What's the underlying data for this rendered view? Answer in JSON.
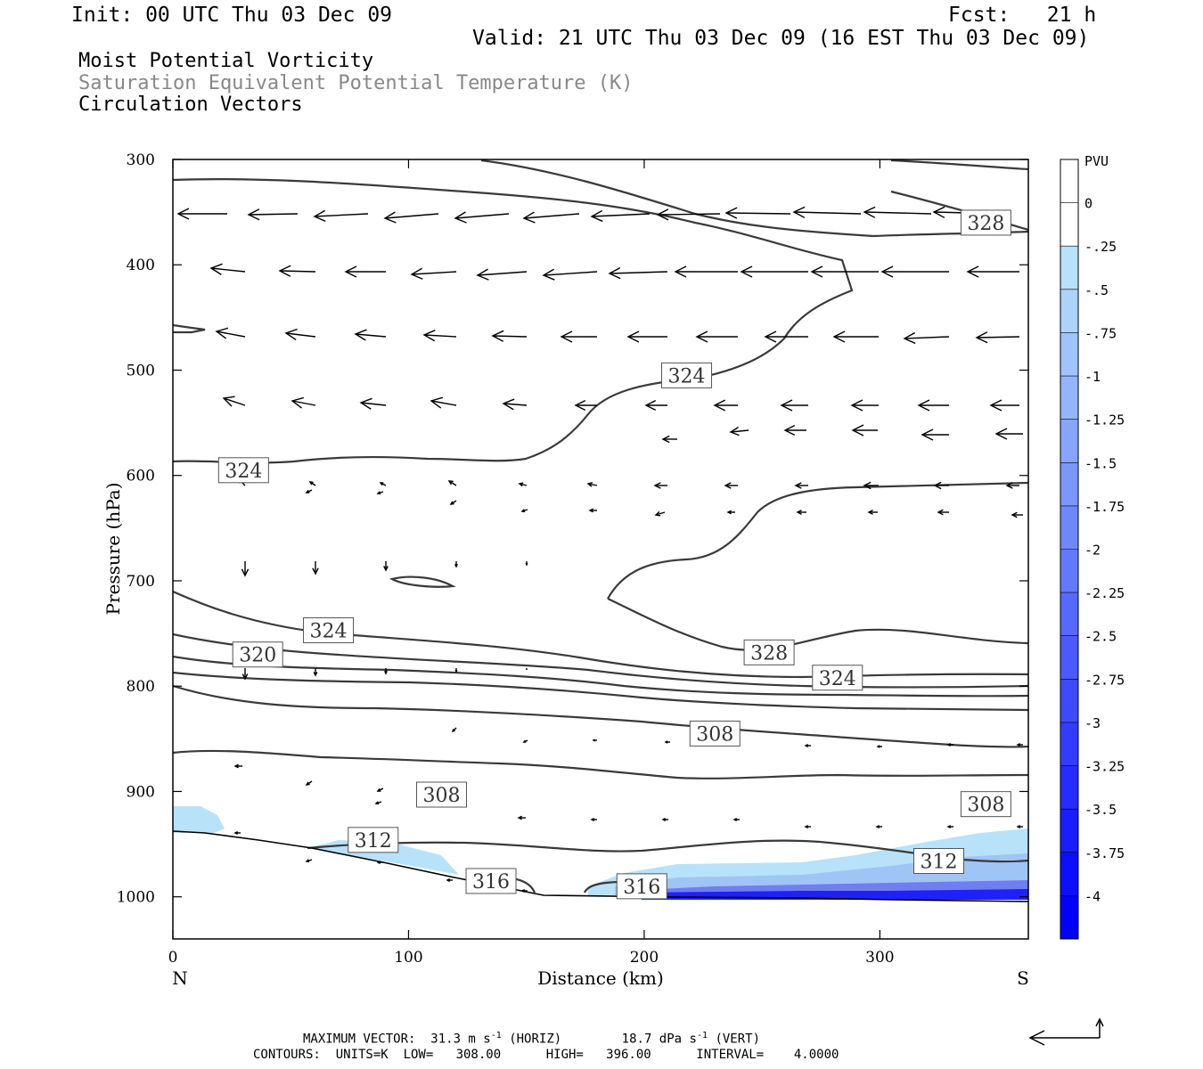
{
  "header": {
    "init": "Init: 00 UTC Thu 03 Dec 09",
    "fcst": "Fcst:   21 h",
    "valid": "Valid: 21 UTC Thu 03 Dec 09 (16 EST Thu 03 Dec 09)",
    "fields": [
      "Moist Potential Vorticity",
      "Saturation Equivalent Potential Temperature (K)",
      "Circulation Vectors"
    ]
  },
  "footer": {
    "max_vector": "MAXIMUM VECTOR:  31.3 m s",
    "horiz_unit": "(HORIZ)",
    "vert_value": "18.7 dPa s",
    "vert_unit": "(VERT)",
    "exp": "-1",
    "contours": "CONTOURS:  UNITS=K  LOW=   308.00      HIGH=   396.00      INTERVAL=    4.0000"
  },
  "colors": {
    "contour": "#3a3a3a",
    "pv_light": "#b8e2fa",
    "pv_dark": "#0000ff"
  },
  "chart_data": {
    "type": "cross-section",
    "xlabel": "Distance (km)",
    "ylabel": "Pressure (hPa)",
    "xlim": [
      0,
      363
    ],
    "ylim": [
      1040,
      300
    ],
    "x_ticks": [
      "0",
      "100",
      "200",
      "300"
    ],
    "y_ticks": [
      "300",
      "400",
      "500",
      "600",
      "700",
      "800",
      "900",
      "1000"
    ],
    "x_end_labels": {
      "left": "N",
      "right": "S"
    },
    "colorbar": {
      "unit": "PVU",
      "labels": [
        "0",
        "-.25",
        "-.5",
        "-.75",
        "-1",
        "-1.25",
        "-1.5",
        "-1.75",
        "-2",
        "-2.25",
        "-2.5",
        "-2.75",
        "-3",
        "-3.25",
        "-3.5",
        "-3.75",
        "-4"
      ]
    },
    "contour_labels": [
      {
        "text": "328",
        "x": 345,
        "p": 360
      },
      {
        "text": "324",
        "x": 218,
        "p": 505
      },
      {
        "text": "324",
        "x": 30,
        "p": 595
      },
      {
        "text": "324",
        "x": 66,
        "p": 747
      },
      {
        "text": "320",
        "x": 36,
        "p": 770
      },
      {
        "text": "328",
        "x": 253,
        "p": 768
      },
      {
        "text": "324",
        "x": 282,
        "p": 792
      },
      {
        "text": "308",
        "x": 230,
        "p": 845
      },
      {
        "text": "308",
        "x": 114,
        "p": 903
      },
      {
        "text": "308",
        "x": 345,
        "p": 912
      },
      {
        "text": "312",
        "x": 85,
        "p": 946
      },
      {
        "text": "312",
        "x": 325,
        "p": 966
      },
      {
        "text": "316",
        "x": 135,
        "p": 985
      },
      {
        "text": "316",
        "x": 199,
        "p": 990
      }
    ]
  }
}
